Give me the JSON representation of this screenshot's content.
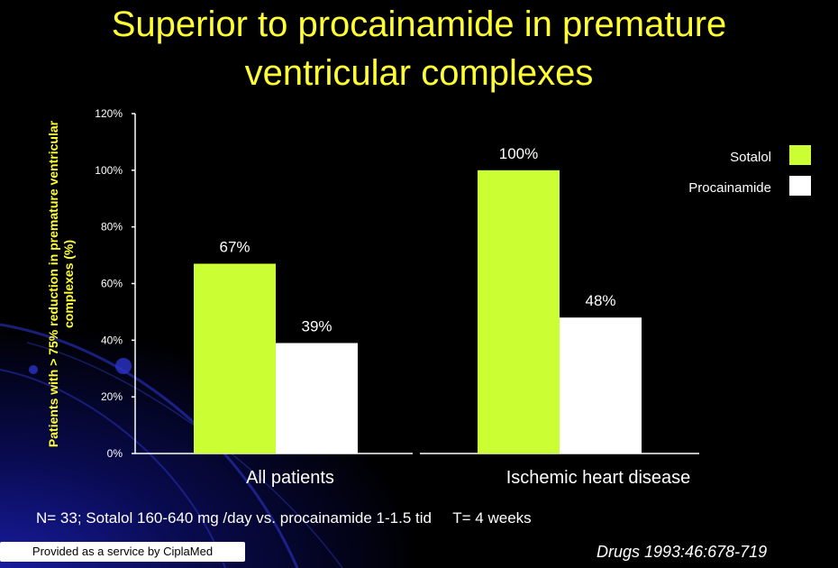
{
  "slide": {
    "title_line1": "Superior to procainamide in premature",
    "title_line2": "ventricular complexes",
    "footnote": "N= 33; Sotalol 160-640 mg /day vs. procainamide 1-1.5 tid     T= 4 weeks",
    "provided_by": "Provided as a service by CiplaMed",
    "citation": "Drugs 1993:46:678-719"
  },
  "colors": {
    "background": "#000000",
    "title": "#ffff33",
    "sotalol": "#ccff33",
    "procainamide": "#ffffff",
    "axis_text": "#ffffff",
    "ylabel": "#ffff33"
  },
  "chart_data": {
    "type": "bar",
    "title": "",
    "ylabel": "Patients with > 75% reduction in premature ventricular complexes (%)",
    "xlabel": "",
    "ylim": [
      0,
      120
    ],
    "yticks": [
      0,
      20,
      40,
      60,
      80,
      100,
      120
    ],
    "ytick_labels": [
      "0%",
      "20%",
      "40%",
      "60%",
      "80%",
      "100%",
      "120%"
    ],
    "categories": [
      "All patients",
      "Ischemic heart disease"
    ],
    "series": [
      {
        "name": "Sotalol",
        "values": [
          67,
          100
        ],
        "labels": [
          "67%",
          "100%"
        ]
      },
      {
        "name": "Procainamide",
        "values": [
          39,
          48
        ],
        "labels": [
          "39%",
          "48%"
        ]
      }
    ],
    "legend_position": "top-right",
    "grid": false
  }
}
